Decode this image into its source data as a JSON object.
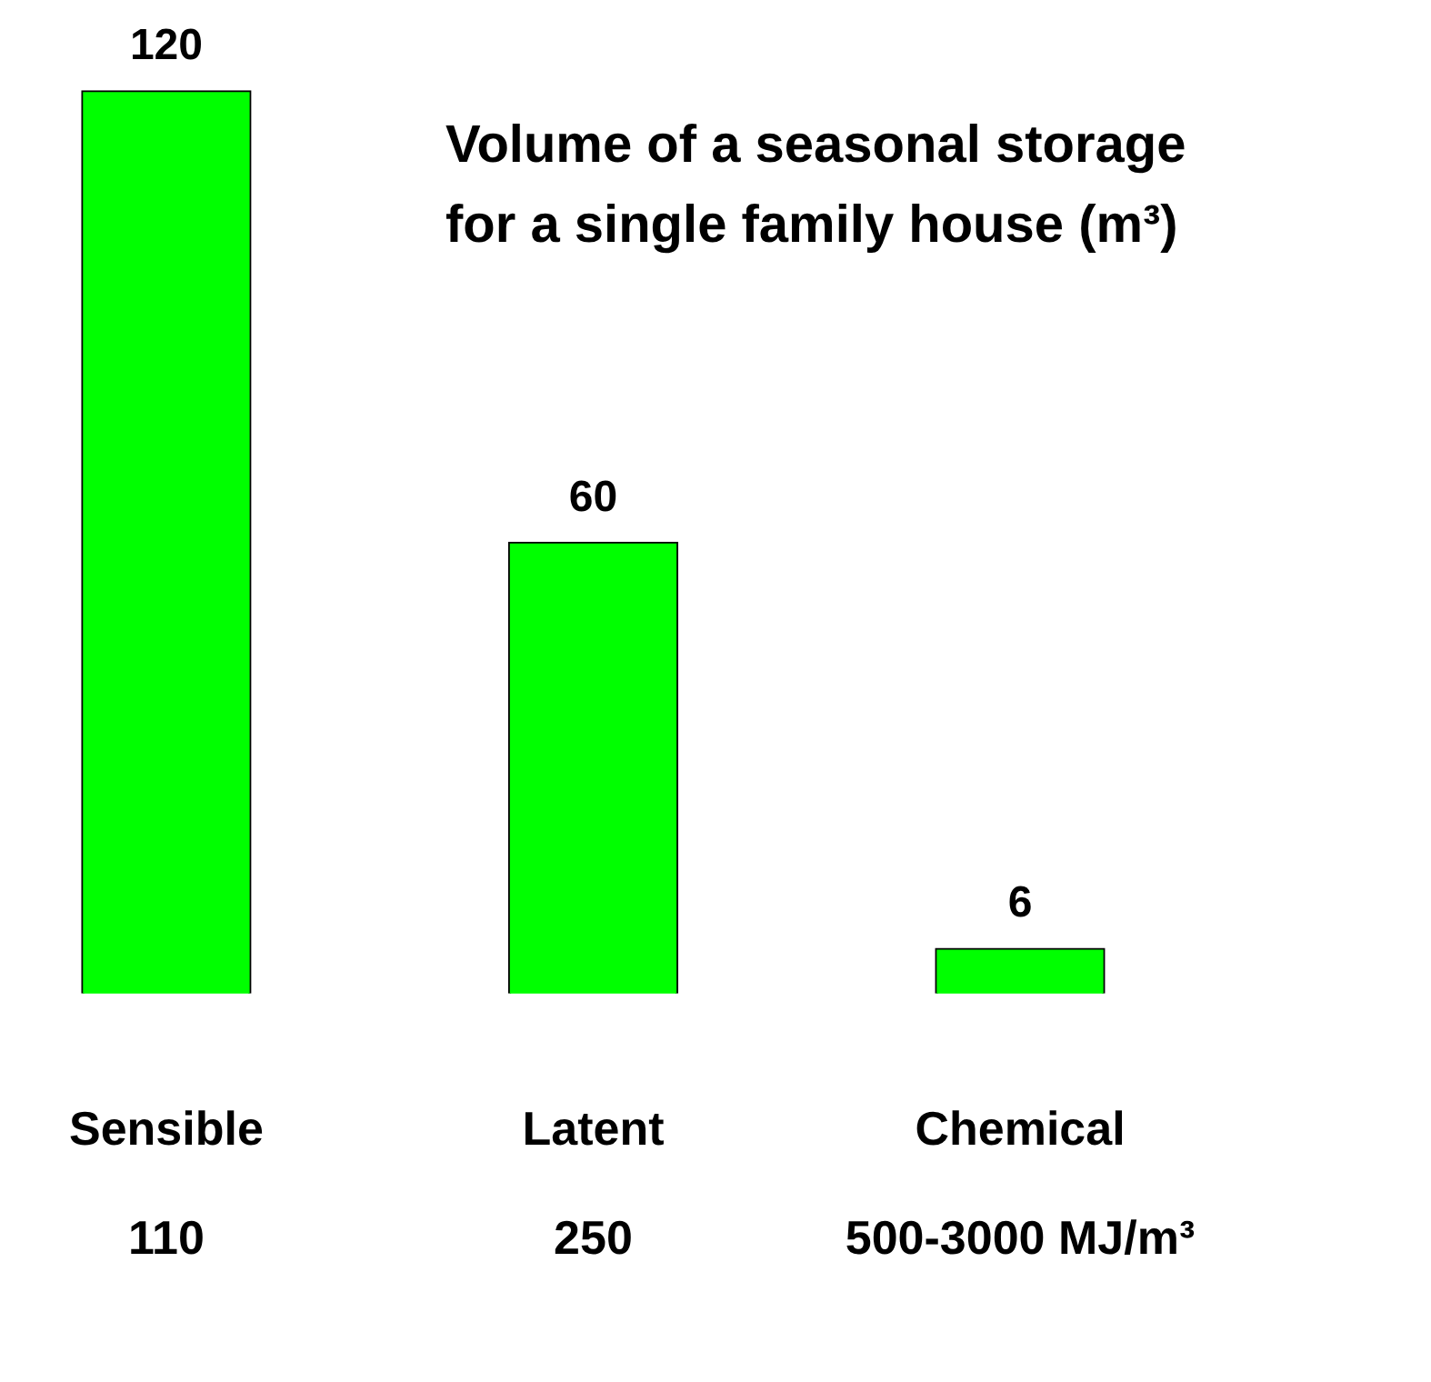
{
  "chart_data": {
    "type": "bar",
    "title": "Volume of a seasonal storage\nfor a single family house (m³)",
    "categories": [
      "Sensible",
      "Latent",
      "Chemical"
    ],
    "values": [
      120,
      60,
      6
    ],
    "color": "#00ff00",
    "data_labels": true,
    "annotations": [
      "110",
      "250",
      "500-3000 MJ/m³"
    ]
  }
}
